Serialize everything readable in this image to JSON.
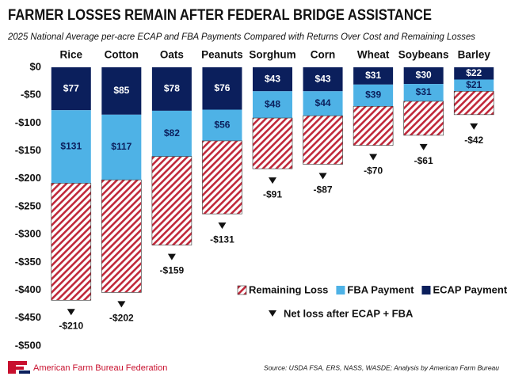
{
  "chart_data": {
    "type": "stacked-bar",
    "title": "FARMER LOSSES REMAIN AFTER FEDERAL BRIDGE ASSISTANCE",
    "subtitle": "2025 National Average per-acre ECAP and FBA Payments Compared with Returns Over Cost and Remaining Losses",
    "categories": [
      "Rice",
      "Cotton",
      "Oats",
      "Peanuts",
      "Sorghum",
      "Corn",
      "Wheat",
      "Soybeans",
      "Barley"
    ],
    "series": [
      {
        "name": "ECAP Payment",
        "color": "#0b1f5c",
        "values": [
          -77,
          -85,
          -78,
          -76,
          -43,
          -43,
          -31,
          -30,
          -22
        ],
        "value_labels": [
          "$77",
          "$85",
          "$78",
          "$76",
          "$43",
          "$43",
          "$31",
          "$30",
          "$22"
        ]
      },
      {
        "name": "FBA Payment",
        "color": "#4eb2e6",
        "values": [
          -131,
          -117,
          -82,
          -56,
          -48,
          -44,
          -39,
          -31,
          -21
        ],
        "value_labels": [
          "$131",
          "$117",
          "$82",
          "$56",
          "$48",
          "$44",
          "$39",
          "$31",
          "$21"
        ]
      },
      {
        "name": "Remaining Loss",
        "color": "#c0283a",
        "values": [
          -210,
          -202,
          -159,
          -131,
          -91,
          -87,
          -70,
          -61,
          -42
        ],
        "value_labels": [
          "-$210",
          "-$202",
          "-$159",
          "-$131",
          "-$91",
          "-$87",
          "-$70",
          "-$61",
          "-$42"
        ]
      }
    ],
    "annotation": "Net loss after ECAP + FBA",
    "ylim": [
      -500,
      0
    ],
    "yticks": [
      {
        "value": 0,
        "label": "$0"
      },
      {
        "value": -50,
        "label": "-$50"
      },
      {
        "value": -100,
        "label": "-$100"
      },
      {
        "value": -150,
        "label": "-$150"
      },
      {
        "value": -200,
        "label": "-$200"
      },
      {
        "value": -250,
        "label": "-$250"
      },
      {
        "value": -300,
        "label": "-$300"
      },
      {
        "value": -350,
        "label": "-$350"
      },
      {
        "value": -400,
        "label": "-$400"
      },
      {
        "value": -450,
        "label": "-$450"
      },
      {
        "value": -500,
        "label": "-$500"
      }
    ],
    "grid": false,
    "source": "Source: USDA FSA, ERS, NASS, WASDE; Analysis by American Farm Bureau",
    "organization": "American Farm Bureau Federation"
  }
}
